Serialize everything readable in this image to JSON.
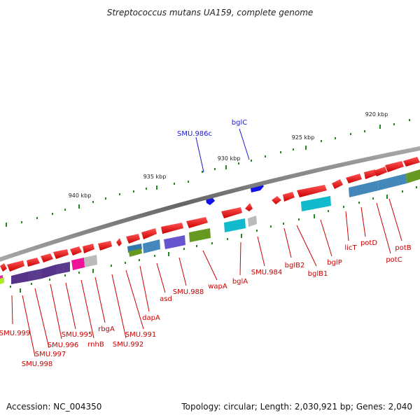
{
  "title": "Streptococcus mutans UA159, complete genome",
  "footer": {
    "accession": "Accession: NC_004350",
    "summary": "Topology: circular; Length: 2,030,921 bp; Genes: 2,040"
  },
  "ticks": [
    "920 kbp",
    "925 kbp",
    "930 kbp",
    "935 kbp",
    "940 kbp"
  ],
  "genes_forward_labels": [
    "SMU.986c",
    "bglC"
  ],
  "genes_reverse_labels": [
    "SMU.999",
    "SMU.998",
    "SMU.997",
    "SMU.996",
    "SMU.995",
    "rnhB",
    "rbgA",
    "SMU.992",
    "SMU.991",
    "dapA",
    "asd",
    "SMU.988",
    "wapA",
    "bglA",
    "SMU.984",
    "bglB2",
    "bglB1",
    "bglP",
    "licT",
    "potD",
    "potC",
    "potB"
  ],
  "colors": {
    "backbone": "#888888",
    "cds": "#ee1111",
    "forward_cds": "#1111ee",
    "tick": "#228822",
    "label_red": "#cc0000",
    "label_blue": "#1a1ad0"
  }
}
